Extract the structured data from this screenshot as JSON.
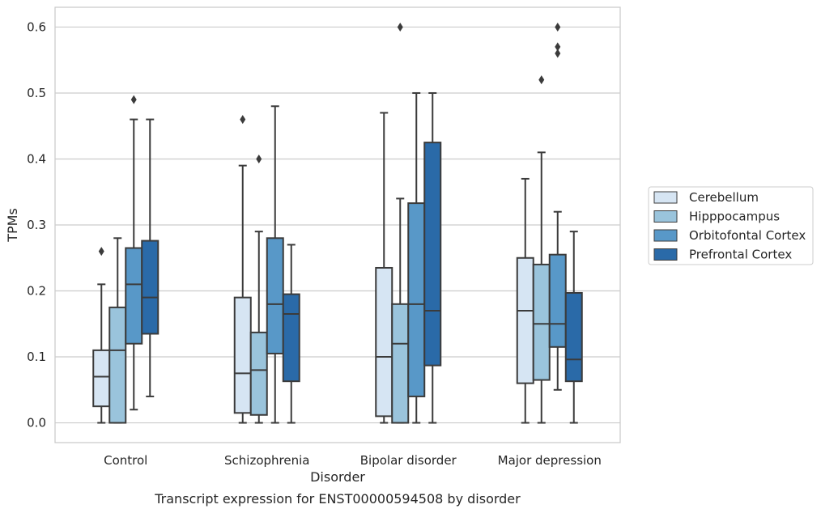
{
  "chart_data": {
    "type": "box",
    "title": "",
    "caption": "Transcript expression for ENST00000594508 by disorder",
    "xlabel": "Disorder",
    "ylabel": "TPMs",
    "ylim": [
      -0.03,
      0.63
    ],
    "yticks": [
      0.0,
      0.1,
      0.2,
      0.3,
      0.4,
      0.5,
      0.6
    ],
    "ytick_labels": [
      "0.0",
      "0.1",
      "0.2",
      "0.3",
      "0.4",
      "0.5",
      "0.6"
    ],
    "grid": "horizontal",
    "legend_position": "right",
    "categories": [
      "Control",
      "Schizophrenia",
      "Bipolar disorder",
      "Major depression"
    ],
    "series": [
      {
        "name": "Cerebellum",
        "color": "#d6e5f3",
        "boxes": [
          {
            "whisker_low": 0.0,
            "q1": 0.025,
            "median": 0.07,
            "q3": 0.11,
            "whisker_high": 0.21,
            "outliers": [
              0.26
            ]
          },
          {
            "whisker_low": 0.0,
            "q1": 0.015,
            "median": 0.075,
            "q3": 0.19,
            "whisker_high": 0.39,
            "outliers": [
              0.46
            ]
          },
          {
            "whisker_low": 0.0,
            "q1": 0.01,
            "median": 0.1,
            "q3": 0.235,
            "whisker_high": 0.47,
            "outliers": []
          },
          {
            "whisker_low": 0.0,
            "q1": 0.06,
            "median": 0.17,
            "q3": 0.25,
            "whisker_high": 0.37,
            "outliers": []
          }
        ]
      },
      {
        "name": "Hipppocampus",
        "color": "#9ac4dc",
        "boxes": [
          {
            "whisker_low": 0.0,
            "q1": 0.0,
            "median": 0.11,
            "q3": 0.175,
            "whisker_high": 0.28,
            "outliers": []
          },
          {
            "whisker_low": 0.0,
            "q1": 0.012,
            "median": 0.08,
            "q3": 0.137,
            "whisker_high": 0.29,
            "outliers": [
              0.4
            ]
          },
          {
            "whisker_low": 0.0,
            "q1": 0.0,
            "median": 0.12,
            "q3": 0.18,
            "whisker_high": 0.34,
            "outliers": [
              0.6
            ]
          },
          {
            "whisker_low": 0.0,
            "q1": 0.065,
            "median": 0.15,
            "q3": 0.24,
            "whisker_high": 0.41,
            "outliers": [
              0.52
            ]
          }
        ]
      },
      {
        "name": "Orbitofontal Cortex",
        "color": "#5898c8",
        "boxes": [
          {
            "whisker_low": 0.02,
            "q1": 0.12,
            "median": 0.21,
            "q3": 0.265,
            "whisker_high": 0.46,
            "outliers": [
              0.49
            ]
          },
          {
            "whisker_low": 0.0,
            "q1": 0.105,
            "median": 0.18,
            "q3": 0.28,
            "whisker_high": 0.48,
            "outliers": []
          },
          {
            "whisker_low": 0.0,
            "q1": 0.04,
            "median": 0.18,
            "q3": 0.333,
            "whisker_high": 0.5,
            "outliers": []
          },
          {
            "whisker_low": 0.05,
            "q1": 0.115,
            "median": 0.15,
            "q3": 0.255,
            "whisker_high": 0.32,
            "outliers": [
              0.56,
              0.57,
              0.6
            ]
          }
        ]
      },
      {
        "name": "Prefrontal Cortex",
        "color": "#2a6aa8",
        "boxes": [
          {
            "whisker_low": 0.04,
            "q1": 0.135,
            "median": 0.19,
            "q3": 0.276,
            "whisker_high": 0.46,
            "outliers": []
          },
          {
            "whisker_low": 0.0,
            "q1": 0.063,
            "median": 0.165,
            "q3": 0.195,
            "whisker_high": 0.27,
            "outliers": []
          },
          {
            "whisker_low": 0.0,
            "q1": 0.087,
            "median": 0.17,
            "q3": 0.425,
            "whisker_high": 0.5,
            "outliers": []
          },
          {
            "whisker_low": 0.0,
            "q1": 0.063,
            "median": 0.096,
            "q3": 0.197,
            "whisker_high": 0.29,
            "outliers": []
          }
        ]
      }
    ]
  }
}
